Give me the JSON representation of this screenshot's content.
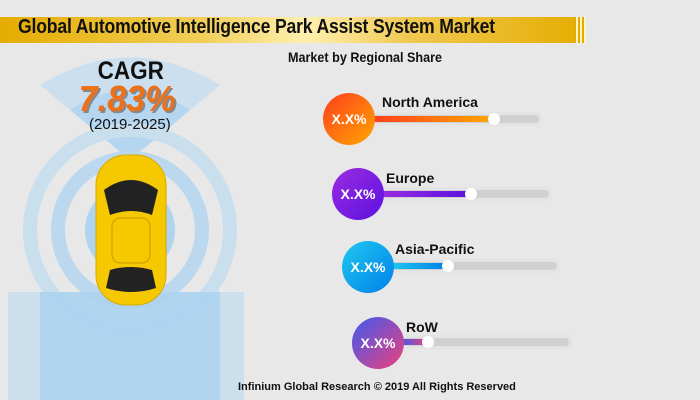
{
  "header": {
    "title": "Global Automotive Intelligence Park Assist System Market"
  },
  "subtitle": "Market by Regional Share",
  "cagr": {
    "label": "CAGR",
    "value": "7.83%",
    "period": "(2019-2025)"
  },
  "regions": [
    {
      "name": "North America",
      "share_label": "X.X%",
      "level": 0.72,
      "colors": [
        "#ff3d1f",
        "#ffa800"
      ]
    },
    {
      "name": "Europe",
      "share_label": "X.X%",
      "level": 0.53,
      "colors": [
        "#9b2de0",
        "#5b10e0"
      ]
    },
    {
      "name": "Asia-Pacific",
      "share_label": "X.X%",
      "level": 0.34,
      "colors": [
        "#20c8f0",
        "#0080e8"
      ]
    },
    {
      "name": "RoW",
      "share_label": "X.X%",
      "level": 0.16,
      "colors": [
        "#3d5af0",
        "#f0407a"
      ]
    }
  ],
  "footer": "Infinium Global Research © 2019 All Rights Reserved"
}
